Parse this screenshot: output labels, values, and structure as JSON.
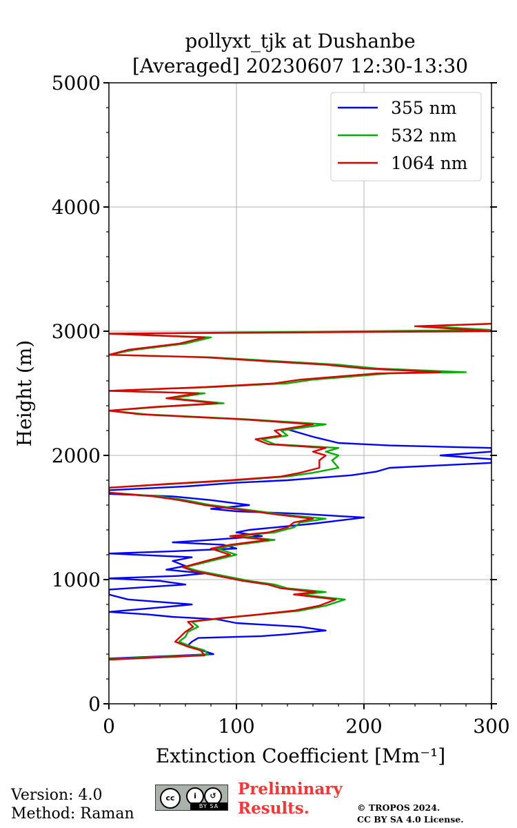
{
  "header": {
    "title_line1": "pollyxt_tjk at Dushanbe",
    "title_line2": "[Averaged] 20230607 12:30-13:30"
  },
  "footer": {
    "version": "Version: 4.0",
    "method": "Method: Raman",
    "prelim_line1": "Preliminary",
    "prelim_line2": "Results.",
    "copyright_line1": "© TROPOS 2024.",
    "copyright_line2": "CC BY SA 4.0 License.",
    "cc_badge": "BY  SA",
    "cc_icon": "cc",
    "by_icon": "i",
    "sa_icon": "↺"
  },
  "chart_data": {
    "type": "line",
    "title": "pollyxt_tjk at Dushanbe [Averaged] 20230607 12:30-13:30",
    "xlabel": "Extinction Coefficient [Mm⁻¹]",
    "ylabel": "Height (m)",
    "xlim": [
      0,
      300
    ],
    "ylim": [
      0,
      5000
    ],
    "xticks": [
      "0",
      "100",
      "200",
      "300"
    ],
    "yticks": [
      "0",
      "1000",
      "2000",
      "3000",
      "4000",
      "5000"
    ],
    "grid": true,
    "legend_position": "top-right",
    "series": [
      {
        "name": "355 nm",
        "color": "#0000ff",
        "points": [
          [
            0,
            365
          ],
          [
            82,
            400
          ],
          [
            70,
            440
          ],
          [
            62,
            470
          ],
          [
            65,
            500
          ],
          [
            70,
            530
          ],
          [
            120,
            545
          ],
          [
            140,
            560
          ],
          [
            170,
            590
          ],
          [
            150,
            620
          ],
          [
            100,
            650
          ],
          [
            85,
            680
          ],
          [
            50,
            700
          ],
          [
            30,
            720
          ],
          [
            0,
            740
          ],
          [
            45,
            780
          ],
          [
            65,
            800
          ],
          [
            15,
            840
          ],
          [
            0,
            880
          ],
          [
            0,
            920
          ],
          [
            60,
            960
          ],
          [
            40,
            990
          ],
          [
            0,
            1010
          ],
          [
            55,
            1030
          ],
          [
            75,
            1050
          ],
          [
            45,
            1080
          ],
          [
            60,
            1110
          ],
          [
            50,
            1150
          ],
          [
            65,
            1180
          ],
          [
            0,
            1210
          ],
          [
            55,
            1230
          ],
          [
            100,
            1250
          ],
          [
            90,
            1280
          ],
          [
            50,
            1300
          ],
          [
            80,
            1320
          ],
          [
            120,
            1350
          ],
          [
            100,
            1380
          ],
          [
            110,
            1400
          ],
          [
            130,
            1420
          ],
          [
            160,
            1450
          ],
          [
            200,
            1500
          ],
          [
            150,
            1530
          ],
          [
            100,
            1550
          ],
          [
            80,
            1570
          ],
          [
            110,
            1600
          ],
          [
            80,
            1640
          ],
          [
            50,
            1670
          ],
          [
            0,
            1690
          ],
          [
            0,
            1720
          ],
          [
            60,
            1750
          ],
          [
            100,
            1780
          ],
          [
            140,
            1800
          ],
          [
            190,
            1840
          ],
          [
            210,
            1870
          ],
          [
            220,
            1900
          ],
          [
            260,
            1920
          ],
          [
            300,
            1940
          ],
          [
            300,
            1970
          ],
          [
            260,
            2000
          ],
          [
            300,
            2030
          ],
          [
            300,
            2060
          ],
          [
            220,
            2080
          ],
          [
            180,
            2100
          ],
          [
            160,
            2150
          ],
          [
            150,
            2180
          ],
          [
            140,
            2210
          ]
        ]
      },
      {
        "name": "532 nm",
        "color": "#00b000",
        "points": [
          [
            0,
            360
          ],
          [
            78,
            395
          ],
          [
            75,
            430
          ],
          [
            65,
            460
          ],
          [
            55,
            500
          ],
          [
            60,
            540
          ],
          [
            62,
            580
          ],
          [
            70,
            620
          ],
          [
            65,
            660
          ],
          [
            90,
            690
          ],
          [
            120,
            720
          ],
          [
            150,
            750
          ],
          [
            170,
            790
          ],
          [
            185,
            840
          ],
          [
            150,
            880
          ],
          [
            170,
            900
          ],
          [
            140,
            930
          ],
          [
            130,
            960
          ],
          [
            110,
            990
          ],
          [
            90,
            1030
          ],
          [
            70,
            1070
          ],
          [
            60,
            1100
          ],
          [
            80,
            1150
          ],
          [
            100,
            1200
          ],
          [
            85,
            1250
          ],
          [
            100,
            1280
          ],
          [
            115,
            1300
          ],
          [
            130,
            1320
          ],
          [
            100,
            1350
          ],
          [
            130,
            1380
          ],
          [
            145,
            1420
          ],
          [
            150,
            1460
          ],
          [
            170,
            1490
          ],
          [
            140,
            1520
          ],
          [
            110,
            1560
          ],
          [
            80,
            1600
          ],
          [
            60,
            1640
          ],
          [
            40,
            1670
          ],
          [
            0,
            1700
          ],
          [
            0,
            1740
          ],
          [
            50,
            1770
          ],
          [
            100,
            1800
          ],
          [
            140,
            1830
          ],
          [
            160,
            1860
          ],
          [
            180,
            1900
          ],
          [
            175,
            1960
          ],
          [
            180,
            2000
          ],
          [
            170,
            2030
          ],
          [
            180,
            2060
          ],
          [
            130,
            2090
          ],
          [
            120,
            2130
          ],
          [
            140,
            2160
          ],
          [
            135,
            2200
          ],
          [
            170,
            2250
          ],
          [
            110,
            2290
          ],
          [
            30,
            2330
          ],
          [
            0,
            2360
          ],
          [
            40,
            2390
          ],
          [
            90,
            2420
          ],
          [
            50,
            2460
          ],
          [
            75,
            2500
          ],
          [
            0,
            2520
          ],
          [
            80,
            2550
          ],
          [
            140,
            2580
          ],
          [
            160,
            2610
          ],
          [
            220,
            2660
          ],
          [
            280,
            2670
          ],
          [
            210,
            2700
          ],
          [
            180,
            2730
          ],
          [
            130,
            2760
          ],
          [
            80,
            2790
          ],
          [
            0,
            2810
          ],
          [
            20,
            2850
          ],
          [
            60,
            2900
          ],
          [
            80,
            2950
          ],
          [
            0,
            2980
          ],
          [
            300,
            3010
          ],
          [
            250,
            3040
          ],
          [
            300,
            3060
          ]
        ]
      },
      {
        "name": "1064 nm",
        "color": "#dd0000",
        "points": [
          [
            0,
            355
          ],
          [
            75,
            390
          ],
          [
            72,
            430
          ],
          [
            62,
            460
          ],
          [
            52,
            500
          ],
          [
            56,
            540
          ],
          [
            60,
            580
          ],
          [
            66,
            620
          ],
          [
            62,
            660
          ],
          [
            88,
            690
          ],
          [
            118,
            720
          ],
          [
            145,
            750
          ],
          [
            165,
            790
          ],
          [
            178,
            840
          ],
          [
            145,
            880
          ],
          [
            162,
            900
          ],
          [
            135,
            930
          ],
          [
            125,
            960
          ],
          [
            105,
            990
          ],
          [
            85,
            1030
          ],
          [
            66,
            1070
          ],
          [
            58,
            1100
          ],
          [
            76,
            1150
          ],
          [
            95,
            1200
          ],
          [
            80,
            1250
          ],
          [
            95,
            1280
          ],
          [
            110,
            1300
          ],
          [
            125,
            1320
          ],
          [
            95,
            1350
          ],
          [
            125,
            1380
          ],
          [
            140,
            1420
          ],
          [
            145,
            1460
          ],
          [
            160,
            1490
          ],
          [
            135,
            1520
          ],
          [
            105,
            1560
          ],
          [
            75,
            1600
          ],
          [
            55,
            1640
          ],
          [
            35,
            1670
          ],
          [
            0,
            1700
          ],
          [
            0,
            1740
          ],
          [
            45,
            1770
          ],
          [
            95,
            1800
          ],
          [
            135,
            1830
          ],
          [
            150,
            1860
          ],
          [
            165,
            1900
          ],
          [
            165,
            1960
          ],
          [
            170,
            2000
          ],
          [
            160,
            2030
          ],
          [
            170,
            2060
          ],
          [
            125,
            2090
          ],
          [
            115,
            2130
          ],
          [
            135,
            2160
          ],
          [
            130,
            2200
          ],
          [
            160,
            2250
          ],
          [
            105,
            2290
          ],
          [
            25,
            2330
          ],
          [
            0,
            2360
          ],
          [
            35,
            2390
          ],
          [
            85,
            2420
          ],
          [
            45,
            2460
          ],
          [
            70,
            2500
          ],
          [
            0,
            2520
          ],
          [
            75,
            2550
          ],
          [
            130,
            2580
          ],
          [
            150,
            2610
          ],
          [
            210,
            2660
          ],
          [
            260,
            2670
          ],
          [
            200,
            2700
          ],
          [
            170,
            2730
          ],
          [
            120,
            2760
          ],
          [
            75,
            2790
          ],
          [
            0,
            2810
          ],
          [
            15,
            2850
          ],
          [
            55,
            2900
          ],
          [
            75,
            2950
          ],
          [
            0,
            2980
          ],
          [
            300,
            3000
          ],
          [
            240,
            3040
          ],
          [
            300,
            3060
          ]
        ]
      }
    ]
  }
}
